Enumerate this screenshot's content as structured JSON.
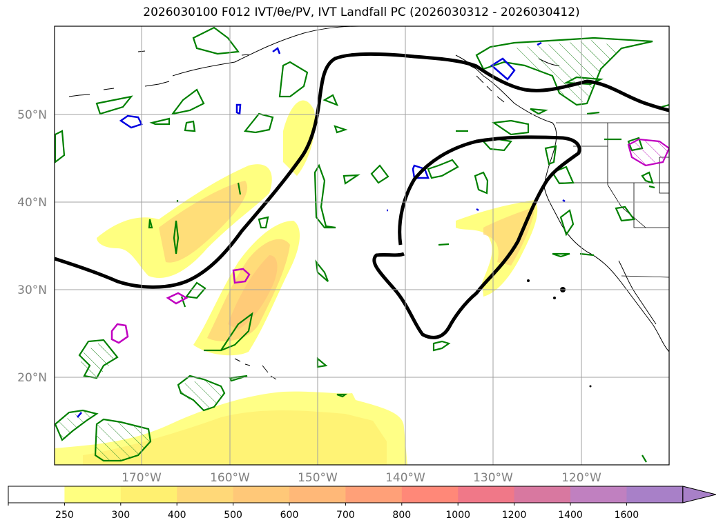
{
  "title": "2026030100 F012 IVT/θe/PV, IVT Landfall PC (2026030312 - 2026030412)",
  "map": {
    "lat_labels": [
      "50°N",
      "40°N",
      "30°N",
      "20°N"
    ],
    "lon_labels": [
      "170°W",
      "160°W",
      "150°W",
      "140°W",
      "130°W",
      "120°W"
    ]
  },
  "colorbar": {
    "ticks": [
      "250",
      "300",
      "400",
      "500",
      "600",
      "700",
      "800",
      "1000",
      "1200",
      "1400",
      "1600"
    ],
    "colors": [
      "#ffffff",
      "#ffff80",
      "#fff070",
      "#ffd878",
      "#ffc878",
      "#ffb878",
      "#ffa078",
      "#ff8878",
      "#f07888",
      "#d878a0",
      "#c080c0",
      "#a880c8"
    ]
  }
}
